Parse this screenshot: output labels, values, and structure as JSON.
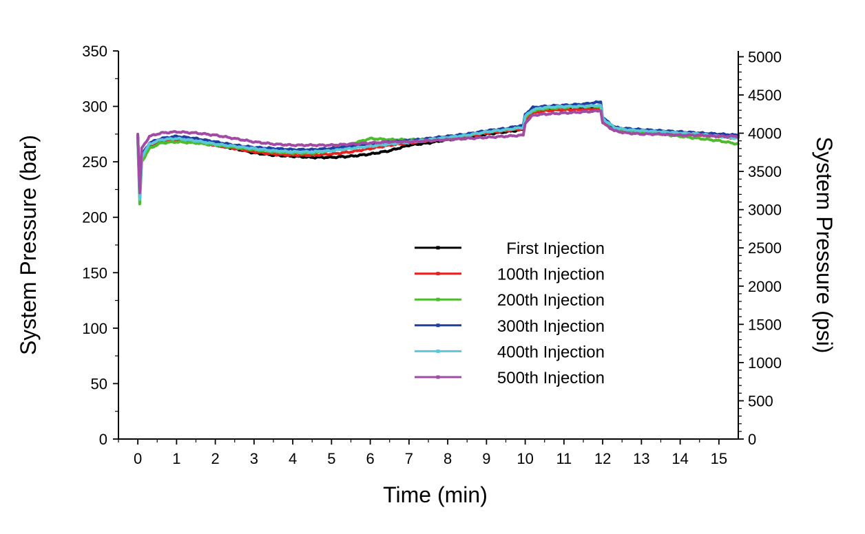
{
  "chart_data": {
    "type": "line",
    "xlabel": "Time (min)",
    "ylabel": "System Pressure (bar)",
    "y2label": "System Pressure (psi)",
    "xlim": [
      -0.5,
      15.5
    ],
    "ylim": [
      0,
      350
    ],
    "y2lim": [
      0,
      5076
    ],
    "xticks": [
      0,
      1,
      2,
      3,
      4,
      5,
      6,
      7,
      8,
      9,
      10,
      11,
      12,
      13,
      14,
      15
    ],
    "yticks": [
      0,
      50,
      100,
      150,
      200,
      250,
      300,
      350
    ],
    "y2ticks": [
      0,
      500,
      1000,
      1500,
      2000,
      2500,
      3000,
      3500,
      4000,
      4500,
      5000
    ],
    "grid": false,
    "legend_position": "center-right",
    "series": [
      {
        "name": "First Injection",
        "color": "#000000",
        "x": [
          0,
          0.05,
          0.1,
          0.3,
          0.6,
          1,
          1.5,
          2,
          2.5,
          3,
          3.5,
          4,
          4.5,
          5,
          5.5,
          6,
          6.5,
          7,
          7.5,
          8,
          8.5,
          9,
          9.5,
          9.95,
          10,
          10.2,
          10.5,
          11,
          11.5,
          11.95,
          12,
          12.3,
          12.6,
          13,
          13.5,
          14,
          14.5,
          15,
          15.5
        ],
        "y": [
          272,
          225,
          255,
          265,
          268,
          270,
          268,
          265,
          262,
          258,
          256,
          255,
          254,
          254,
          255,
          257,
          260,
          265,
          267,
          270,
          272,
          275,
          277,
          279,
          290,
          296,
          298,
          299,
          299,
          299,
          288,
          281,
          279,
          278,
          277,
          276,
          275,
          274,
          272
        ]
      },
      {
        "name": "100th Injection",
        "color": "#e8231f",
        "x": [
          0,
          0.05,
          0.1,
          0.3,
          0.6,
          1,
          1.5,
          2,
          2.5,
          3,
          3.5,
          4,
          4.5,
          5,
          5.5,
          6,
          6.5,
          7,
          7.5,
          8,
          8.5,
          9,
          9.5,
          9.95,
          10,
          10.2,
          10.5,
          11,
          11.5,
          11.95,
          12,
          12.3,
          12.6,
          13,
          13.5,
          14,
          14.5,
          15,
          15.5
        ],
        "y": [
          271,
          220,
          252,
          264,
          268,
          270,
          268,
          265,
          262,
          259,
          257,
          256,
          256,
          257,
          259,
          262,
          265,
          267,
          269,
          271,
          273,
          276,
          278,
          280,
          288,
          294,
          296,
          297,
          297,
          298,
          287,
          280,
          278,
          277,
          276,
          275,
          274,
          273,
          271
        ]
      },
      {
        "name": "200th Injection",
        "color": "#4cbb2c",
        "x": [
          0,
          0.05,
          0.1,
          0.3,
          0.6,
          1,
          1.5,
          2,
          2.5,
          3,
          3.5,
          4,
          4.5,
          5,
          5.5,
          6,
          6.5,
          7,
          7.5,
          8,
          8.5,
          9,
          9.5,
          9.95,
          10,
          10.2,
          10.5,
          11,
          11.5,
          11.95,
          12,
          12.3,
          12.6,
          13,
          13.5,
          14,
          14.5,
          15,
          15.5
        ],
        "y": [
          268,
          212,
          250,
          262,
          267,
          268,
          267,
          265,
          263,
          261,
          259,
          258,
          258,
          260,
          266,
          271,
          270,
          270,
          270,
          272,
          274,
          277,
          279,
          281,
          290,
          296,
          298,
          299,
          300,
          300,
          288,
          280,
          278,
          277,
          275,
          273,
          271,
          269,
          266
        ]
      },
      {
        "name": "300th Injection",
        "color": "#1f3fa0",
        "x": [
          0,
          0.05,
          0.1,
          0.3,
          0.6,
          1,
          1.5,
          2,
          2.5,
          3,
          3.5,
          4,
          4.5,
          5,
          5.5,
          6,
          6.5,
          7,
          7.5,
          8,
          8.5,
          9,
          9.5,
          9.95,
          10,
          10.2,
          10.5,
          11,
          11.5,
          11.95,
          12,
          12.3,
          12.6,
          13,
          13.5,
          14,
          14.5,
          15,
          15.5
        ],
        "y": [
          274,
          218,
          256,
          267,
          271,
          273,
          271,
          268,
          265,
          263,
          262,
          261,
          261,
          262,
          264,
          266,
          268,
          269,
          271,
          273,
          275,
          278,
          280,
          283,
          293,
          299,
          300,
          301,
          302,
          304,
          290,
          281,
          280,
          279,
          278,
          277,
          276,
          275,
          274
        ]
      },
      {
        "name": "400th Injection",
        "color": "#5bc8d8",
        "x": [
          0,
          0.05,
          0.1,
          0.3,
          0.6,
          1,
          1.5,
          2,
          2.5,
          3,
          3.5,
          4,
          4.5,
          5,
          5.5,
          6,
          6.5,
          7,
          7.5,
          8,
          8.5,
          9,
          9.5,
          9.95,
          10,
          10.2,
          10.5,
          11,
          11.5,
          11.95,
          12,
          12.3,
          12.6,
          13,
          13.5,
          14,
          14.5,
          15,
          15.5
        ],
        "y": [
          270,
          216,
          254,
          266,
          270,
          271,
          269,
          266,
          264,
          262,
          260,
          259,
          259,
          260,
          262,
          264,
          266,
          268,
          270,
          272,
          274,
          277,
          279,
          281,
          291,
          297,
          299,
          300,
          300,
          301,
          289,
          281,
          279,
          278,
          277,
          276,
          275,
          273,
          271
        ]
      },
      {
        "name": "500th Injection",
        "color": "#a24ba4",
        "x": [
          0,
          0.05,
          0.1,
          0.3,
          0.6,
          1,
          1.5,
          2,
          2.5,
          3,
          3.5,
          4,
          4.5,
          5,
          5.5,
          6,
          6.5,
          7,
          7.5,
          8,
          8.5,
          9,
          9.5,
          9.95,
          10,
          10.2,
          10.5,
          11,
          11.5,
          11.95,
          12,
          12.3,
          12.6,
          13,
          13.5,
          14,
          14.5,
          15,
          15.5
        ],
        "y": [
          275,
          222,
          262,
          273,
          276,
          277,
          276,
          274,
          271,
          268,
          266,
          265,
          265,
          265,
          266,
          267,
          268,
          268,
          269,
          270,
          271,
          272,
          273,
          274,
          285,
          292,
          293,
          294,
          295,
          296,
          285,
          278,
          276,
          275,
          275,
          274,
          274,
          273,
          273
        ]
      }
    ]
  }
}
